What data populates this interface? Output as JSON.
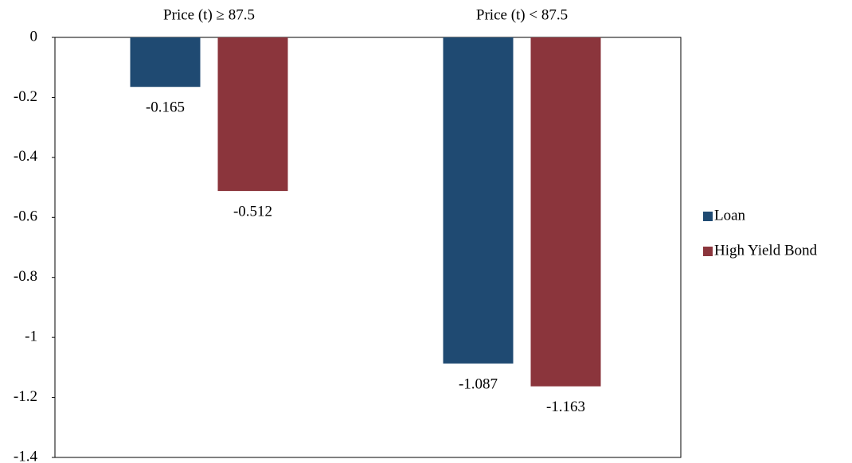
{
  "chart_data": {
    "type": "bar",
    "categories": [
      "Price (t) ≥ 87.5",
      "Price (t) < 87.5"
    ],
    "series": [
      {
        "name": "Loan",
        "color": "#1f4a72",
        "values": [
          -0.165,
          -1.087
        ]
      },
      {
        "name": "High Yield Bond",
        "color": "#8b353c",
        "values": [
          -0.512,
          -1.163
        ]
      }
    ],
    "ylim": [
      -1.4,
      0
    ],
    "yticks": [
      0,
      -0.2,
      -0.4,
      -0.6,
      -0.8,
      -1,
      -1.2,
      -1.4
    ],
    "legend": "right"
  }
}
